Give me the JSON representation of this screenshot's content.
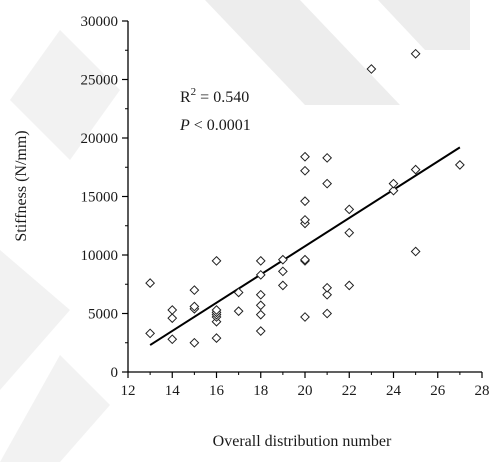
{
  "chart_data": {
    "type": "scatter",
    "title": "",
    "xlabel": "Overall distribution number",
    "ylabel": "Stiffness (N/mm)",
    "xlim": [
      12,
      28
    ],
    "ylim": [
      0,
      30000
    ],
    "xticks": [
      12,
      14,
      16,
      18,
      20,
      22,
      24,
      26,
      28
    ],
    "yticks": [
      0,
      5000,
      10000,
      15000,
      20000,
      25000,
      30000
    ],
    "grid": false,
    "marker": "diamond-open",
    "annotations": {
      "r2_prefix": "R",
      "r2_sup": "2",
      "r2_value": " = 0.540",
      "p_prefix": "P",
      "p_value": " < 0.0001"
    },
    "points": [
      {
        "x": 13,
        "y": 3300
      },
      {
        "x": 13,
        "y": 7600
      },
      {
        "x": 14,
        "y": 2800
      },
      {
        "x": 14,
        "y": 4600
      },
      {
        "x": 14,
        "y": 5300
      },
      {
        "x": 15,
        "y": 2500
      },
      {
        "x": 15,
        "y": 5400
      },
      {
        "x": 15,
        "y": 5600
      },
      {
        "x": 15,
        "y": 7000
      },
      {
        "x": 16,
        "y": 2900
      },
      {
        "x": 16,
        "y": 4300
      },
      {
        "x": 16,
        "y": 4700
      },
      {
        "x": 16,
        "y": 4900
      },
      {
        "x": 16,
        "y": 5100
      },
      {
        "x": 16,
        "y": 5300
      },
      {
        "x": 16,
        "y": 9500
      },
      {
        "x": 17,
        "y": 5200
      },
      {
        "x": 17,
        "y": 6800
      },
      {
        "x": 18,
        "y": 3500
      },
      {
        "x": 18,
        "y": 4900
      },
      {
        "x": 18,
        "y": 5700
      },
      {
        "x": 18,
        "y": 6600
      },
      {
        "x": 18,
        "y": 8300
      },
      {
        "x": 18,
        "y": 9500
      },
      {
        "x": 19,
        "y": 7400
      },
      {
        "x": 19,
        "y": 8600
      },
      {
        "x": 19,
        "y": 9600
      },
      {
        "x": 20,
        "y": 4700
      },
      {
        "x": 20,
        "y": 9500
      },
      {
        "x": 20,
        "y": 9600
      },
      {
        "x": 20,
        "y": 12700
      },
      {
        "x": 20,
        "y": 13000
      },
      {
        "x": 20,
        "y": 14600
      },
      {
        "x": 20,
        "y": 17200
      },
      {
        "x": 20,
        "y": 18400
      },
      {
        "x": 21,
        "y": 5000
      },
      {
        "x": 21,
        "y": 6600
      },
      {
        "x": 21,
        "y": 7200
      },
      {
        "x": 21,
        "y": 16100
      },
      {
        "x": 21,
        "y": 18300
      },
      {
        "x": 22,
        "y": 7400
      },
      {
        "x": 22,
        "y": 11900
      },
      {
        "x": 22,
        "y": 13900
      },
      {
        "x": 23,
        "y": 25900
      },
      {
        "x": 24,
        "y": 15500
      },
      {
        "x": 24,
        "y": 16100
      },
      {
        "x": 25,
        "y": 10300
      },
      {
        "x": 25,
        "y": 17300
      },
      {
        "x": 25,
        "y": 27200
      },
      {
        "x": 27,
        "y": 17700
      }
    ],
    "regression": {
      "x1": 13,
      "y1": 2300,
      "x2": 27,
      "y2": 19200
    }
  }
}
